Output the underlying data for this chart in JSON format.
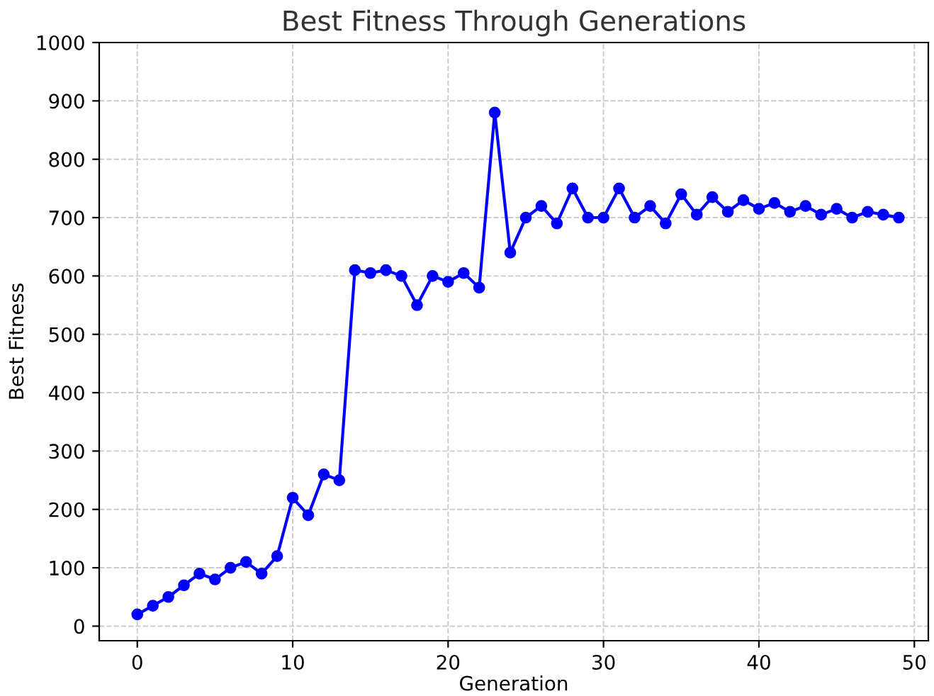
{
  "chart_data": {
    "type": "line",
    "title": "Best Fitness Through Generations",
    "xlabel": "Generation",
    "ylabel": "Best Fitness",
    "x": [
      0,
      1,
      2,
      3,
      4,
      5,
      6,
      7,
      8,
      9,
      10,
      11,
      12,
      13,
      14,
      15,
      16,
      17,
      18,
      19,
      20,
      21,
      22,
      23,
      24,
      25,
      26,
      27,
      28,
      29,
      30,
      31,
      32,
      33,
      34,
      35,
      36,
      37,
      38,
      39,
      40,
      41,
      42,
      43,
      44,
      45,
      46,
      47,
      48,
      49
    ],
    "series": [
      {
        "color": "#0000ff",
        "values": [
          20,
          35,
          50,
          70,
          90,
          80,
          100,
          110,
          90,
          120,
          220,
          190,
          260,
          250,
          610,
          605,
          610,
          600,
          550,
          600,
          590,
          605,
          580,
          880,
          640,
          700,
          720,
          690,
          750,
          700,
          700,
          750,
          700,
          720,
          690,
          740,
          705,
          735,
          710,
          730,
          715,
          725,
          710,
          720,
          705,
          715,
          700,
          710,
          705,
          700
        ]
      }
    ],
    "xlim": [
      -2.45,
      50.9
    ],
    "ylim": [
      -25,
      1000
    ],
    "xticks": [
      0,
      10,
      20,
      30,
      40,
      50
    ],
    "yticks": [
      0,
      100,
      200,
      300,
      400,
      500,
      600,
      700,
      800,
      900,
      1000
    ],
    "grid": true,
    "marker": "circle",
    "line_style": "solid"
  }
}
